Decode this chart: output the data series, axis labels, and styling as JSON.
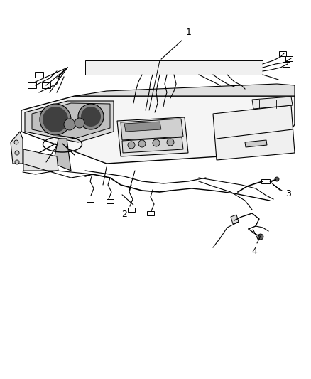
{
  "title": "",
  "background_color": "#ffffff",
  "line_color": "#000000",
  "label_1": "1",
  "label_2": "2",
  "label_3": "3",
  "label_4": "4",
  "label_fontsize": 9,
  "fig_width": 4.38,
  "fig_height": 5.33,
  "dpi": 100
}
